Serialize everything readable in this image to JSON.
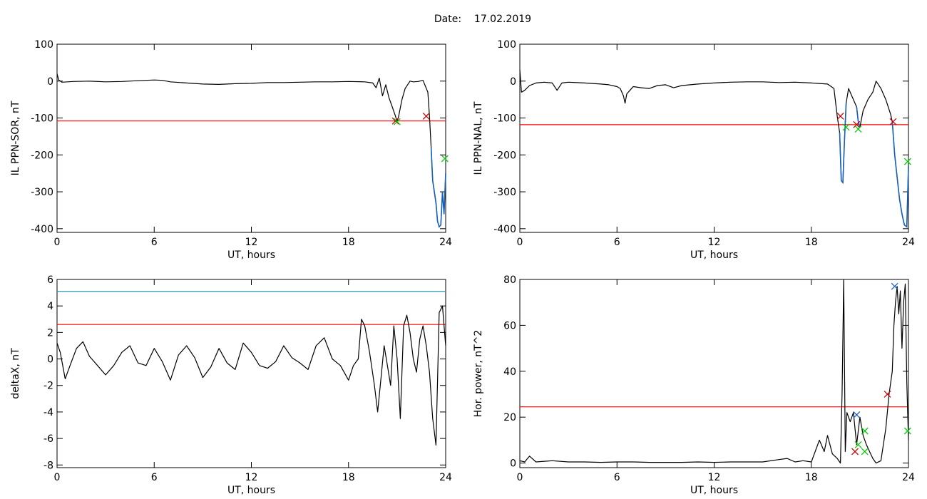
{
  "title": {
    "label": "Date:",
    "value": "17.02.2019"
  },
  "colors": {
    "trace": "#000000",
    "threshold": "#ff0000",
    "threshold_upper": "#1f9bb5",
    "highlight_segment": "#1560bd",
    "marker_red": "#cc0000",
    "marker_green": "#00cc00",
    "marker_blue": "#1560bd"
  },
  "chart_data": [
    {
      "type": "line",
      "id": "ppn-sor",
      "ylabel": "IL PPN-SOR, nT",
      "xlabel": "UT, hours",
      "xlim": [
        0,
        24
      ],
      "ylim": [
        -410,
        100
      ],
      "xticks": [
        0,
        6,
        12,
        18,
        24
      ],
      "yticks": [
        100,
        0,
        -100,
        -200,
        -300,
        -400
      ],
      "series": [
        {
          "x": [
            0,
            0.1,
            0.3,
            1,
            2,
            3,
            4,
            5,
            6,
            6.5,
            7,
            8,
            9,
            10,
            11,
            12,
            13,
            14,
            15,
            16,
            17,
            18,
            19,
            19.5,
            19.7,
            19.9,
            20.1,
            20.3,
            20.5,
            20.7,
            20.9,
            21.0,
            21.1,
            21.3,
            21.5,
            21.8,
            22.0,
            22.3,
            22.6,
            22.9,
            23.0,
            23.1,
            23.2,
            23.3,
            23.4,
            23.5,
            23.6,
            23.7,
            23.8,
            23.9,
            24
          ],
          "y": [
            20,
            3,
            -3,
            -1,
            0,
            -2,
            -1,
            1,
            3,
            2,
            -2,
            -5,
            -8,
            -9,
            -7,
            -6,
            -4,
            -4,
            -3,
            -2,
            -2,
            -1,
            -2,
            -5,
            -18,
            8,
            -40,
            -10,
            -45,
            -70,
            -95,
            -110,
            -95,
            -50,
            -20,
            0,
            -2,
            -1,
            2,
            -30,
            -95,
            -180,
            -270,
            -300,
            -330,
            -380,
            -395,
            -390,
            -300,
            -360,
            -250
          ],
          "highlight_from_x": 23.1
        }
      ],
      "thresholds": [
        {
          "y": -108,
          "color": "red"
        }
      ],
      "markers": [
        {
          "x": 20.9,
          "y": -108,
          "color": "red"
        },
        {
          "x": 21.0,
          "y": -110,
          "color": "green"
        },
        {
          "x": 22.8,
          "y": -95,
          "color": "red"
        },
        {
          "x": 23.95,
          "y": -210,
          "color": "green"
        }
      ]
    },
    {
      "type": "line",
      "id": "ppn-nal",
      "ylabel": "IL PPN-NAL, nT",
      "xlabel": "UT, hours",
      "xlim": [
        0,
        24
      ],
      "ylim": [
        -410,
        100
      ],
      "xticks": [
        0,
        6,
        12,
        18,
        24
      ],
      "yticks": [
        100,
        0,
        -100,
        -200,
        -300,
        -400
      ],
      "series": [
        {
          "x": [
            0,
            0.1,
            0.3,
            0.6,
            1,
            1.5,
            2,
            2.3,
            2.6,
            3,
            4,
            5,
            5.5,
            6,
            6.2,
            6.4,
            6.5,
            6.6,
            6.8,
            7,
            7.5,
            8,
            8.5,
            9,
            9.5,
            10,
            11,
            12,
            13,
            14,
            15,
            16,
            17,
            18,
            19,
            19.4,
            19.6,
            19.75,
            19.85,
            19.95,
            20.05,
            20.15,
            20.3,
            20.5,
            20.8,
            20.9,
            21.0,
            21.2,
            21.5,
            21.8,
            22.0,
            22.3,
            22.6,
            22.9,
            23.0,
            23.15,
            23.3,
            23.45,
            23.6,
            23.75,
            23.9,
            24
          ],
          "y": [
            30,
            -30,
            -25,
            -12,
            -5,
            -3,
            -5,
            -25,
            -5,
            -3,
            -5,
            -8,
            -10,
            -15,
            -20,
            -40,
            -60,
            -35,
            -25,
            -15,
            -18,
            -20,
            -12,
            -10,
            -18,
            -12,
            -8,
            -5,
            -3,
            -2,
            -2,
            -4,
            -3,
            -5,
            -8,
            -20,
            -95,
            -140,
            -270,
            -275,
            -160,
            -60,
            -20,
            -40,
            -70,
            -110,
            -125,
            -80,
            -50,
            -30,
            0,
            -20,
            -50,
            -90,
            -110,
            -200,
            -260,
            -320,
            -360,
            -390,
            -395,
            -230
          ],
          "highlight_segments": [
            [
              19.7,
              20.25
            ],
            [
              20.8,
              21.1
            ],
            [
              23.0,
              24
            ]
          ]
        }
      ],
      "thresholds": [
        {
          "y": -118,
          "color": "red"
        }
      ],
      "markers": [
        {
          "x": 19.8,
          "y": -95,
          "color": "red"
        },
        {
          "x": 20.15,
          "y": -125,
          "color": "green"
        },
        {
          "x": 20.8,
          "y": -118,
          "color": "red"
        },
        {
          "x": 20.9,
          "y": -130,
          "color": "green"
        },
        {
          "x": 23.05,
          "y": -110,
          "color": "red"
        },
        {
          "x": 23.95,
          "y": -218,
          "color": "green"
        }
      ]
    },
    {
      "type": "line",
      "id": "deltax",
      "ylabel": "deltaX, nT",
      "xlabel": "UT, hours",
      "xlim": [
        0,
        24
      ],
      "ylim": [
        -8.2,
        6
      ],
      "xticks": [
        0,
        6,
        12,
        18,
        24
      ],
      "yticks": [
        6,
        4,
        2,
        0,
        -2,
        -4,
        -6,
        -8
      ],
      "series": [
        {
          "x": [
            0,
            0.2,
            0.5,
            0.8,
            1.2,
            1.6,
            2.0,
            2.5,
            3.0,
            3.5,
            4.0,
            4.5,
            5.0,
            5.5,
            6.0,
            6.5,
            7.0,
            7.5,
            8.0,
            8.5,
            9.0,
            9.5,
            10.0,
            10.5,
            11.0,
            11.5,
            12.0,
            12.5,
            13.0,
            13.5,
            14.0,
            14.5,
            15.0,
            15.5,
            16.0,
            16.5,
            17.0,
            17.5,
            18.0,
            18.3,
            18.6,
            18.8,
            19.0,
            19.3,
            19.6,
            19.8,
            20.0,
            20.2,
            20.4,
            20.6,
            20.8,
            21.0,
            21.2,
            21.4,
            21.6,
            21.8,
            22.0,
            22.2,
            22.4,
            22.6,
            22.8,
            23.0,
            23.2,
            23.4,
            23.6,
            23.8,
            24.0
          ],
          "y": [
            1.2,
            0.5,
            -1.5,
            -0.5,
            0.8,
            1.3,
            0.2,
            -0.5,
            -1.2,
            -0.5,
            0.5,
            1.0,
            -0.3,
            -0.5,
            0.8,
            -0.2,
            -1.6,
            0.3,
            1.0,
            0.1,
            -1.4,
            -0.6,
            0.8,
            -0.3,
            -0.8,
            1.2,
            0.5,
            -0.5,
            -0.7,
            -0.2,
            1.0,
            0.1,
            -0.3,
            -0.8,
            1.0,
            1.6,
            0.0,
            -0.5,
            -1.6,
            -0.5,
            0.0,
            3.0,
            2.5,
            0.5,
            -2.0,
            -4.0,
            -1.5,
            1.0,
            -0.5,
            -2.0,
            2.5,
            0.0,
            -4.5,
            2.5,
            3.3,
            2.0,
            0.0,
            -1.0,
            1.5,
            2.5,
            1.0,
            -1.0,
            -4.5,
            -6.5,
            3.5,
            4.0,
            1.0
          ]
        }
      ],
      "thresholds": [
        {
          "y": 5.1,
          "color": "cyan"
        },
        {
          "y": 2.6,
          "color": "red"
        }
      ],
      "markers": []
    },
    {
      "type": "line",
      "id": "hor-power",
      "ylabel": "Hor. power, nT^2",
      "xlabel": "UT, hours",
      "xlim": [
        0,
        24
      ],
      "ylim": [
        -2,
        80
      ],
      "xticks": [
        0,
        6,
        12,
        18,
        24
      ],
      "yticks": [
        80,
        60,
        40,
        20,
        0
      ],
      "series": [
        {
          "x": [
            0,
            0.3,
            0.6,
            1,
            2,
            3,
            4,
            5,
            6,
            7,
            8,
            9,
            10,
            11,
            12,
            13,
            14,
            15,
            16,
            16.5,
            17,
            17.5,
            18,
            18.5,
            18.8,
            19.0,
            19.3,
            19.6,
            19.8,
            19.9,
            20.0,
            20.1,
            20.2,
            20.4,
            20.6,
            20.8,
            21.0,
            21.2,
            21.4,
            21.6,
            21.8,
            22.0,
            22.3,
            22.6,
            22.8,
            23.0,
            23.1,
            23.2,
            23.3,
            23.4,
            23.5,
            23.6,
            23.7,
            23.8,
            23.9,
            24
          ],
          "y": [
            1,
            0.5,
            3,
            0.5,
            1,
            0.5,
            0.5,
            0.3,
            0.5,
            0.5,
            0.3,
            0.3,
            0.3,
            0.5,
            0.3,
            0.5,
            0.5,
            0.5,
            1.5,
            2,
            0.5,
            1,
            0.5,
            10,
            5,
            12,
            4,
            2,
            0,
            30,
            80,
            5,
            22,
            18,
            22,
            8,
            20,
            12,
            8,
            5,
            2,
            0,
            1,
            15,
            30,
            40,
            60,
            70,
            77,
            65,
            75,
            50,
            70,
            78,
            35,
            10
          ]
        }
      ],
      "thresholds": [
        {
          "y": 24.5,
          "color": "red"
        }
      ],
      "markers": [
        {
          "x": 20.8,
          "y": 21,
          "color": "blue"
        },
        {
          "x": 20.7,
          "y": 5,
          "color": "red"
        },
        {
          "x": 21.3,
          "y": 14,
          "color": "green"
        },
        {
          "x": 20.9,
          "y": 8,
          "color": "green"
        },
        {
          "x": 22.7,
          "y": 30,
          "color": "red"
        },
        {
          "x": 23.15,
          "y": 77,
          "color": "blue"
        },
        {
          "x": 21.3,
          "y": 5,
          "color": "green"
        },
        {
          "x": 23.95,
          "y": 14,
          "color": "green"
        }
      ]
    }
  ]
}
